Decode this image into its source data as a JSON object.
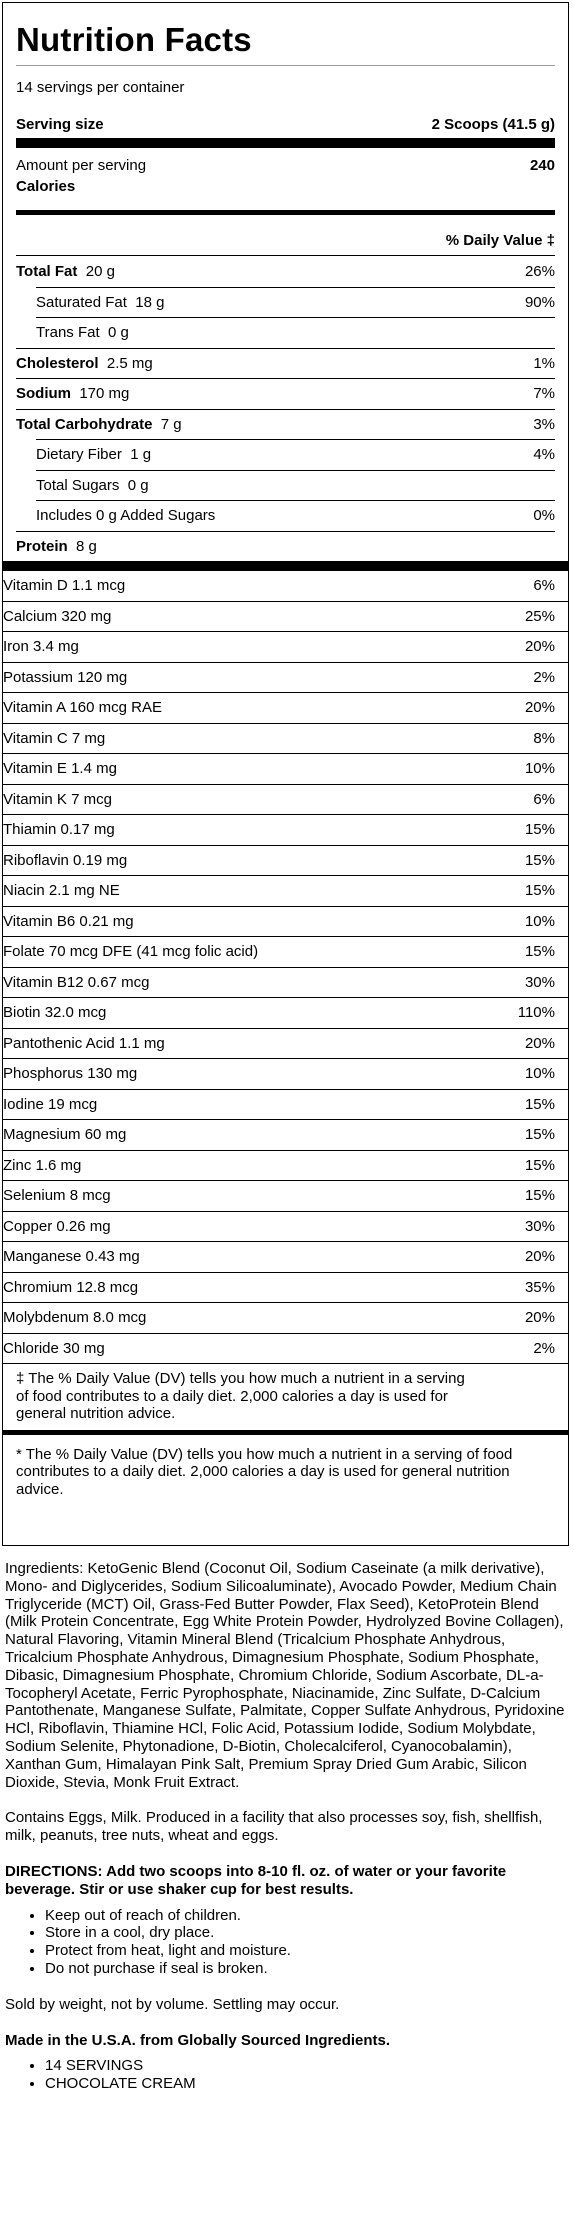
{
  "label": {
    "title": "Nutrition Facts",
    "servings": "14 servings per container",
    "serving_size_label": "Serving size",
    "serving_size_value": "2 Scoops (41.5 g)",
    "amount_per_serving": "Amount per serving",
    "calories_label": "Calories",
    "calories_value": "240",
    "dv_header": "% Daily Value ‡",
    "nutrients": [
      {
        "name": "Total Fat",
        "amount": "20 g",
        "dv": "26%",
        "bold": true,
        "indent": false
      },
      {
        "name": "Saturated Fat",
        "amount": "18 g",
        "dv": "90%",
        "bold": false,
        "indent": true
      },
      {
        "name": "Trans Fat",
        "amount": "0 g",
        "dv": "",
        "bold": false,
        "indent": true
      },
      {
        "name": "Cholesterol",
        "amount": "2.5 mg",
        "dv": "1%",
        "bold": true,
        "indent": false
      },
      {
        "name": "Sodium",
        "amount": "170 mg",
        "dv": "7%",
        "bold": true,
        "indent": false
      },
      {
        "name": "Total Carbohydrate",
        "amount": "7 g",
        "dv": "3%",
        "bold": true,
        "indent": false
      },
      {
        "name": "Dietary Fiber",
        "amount": "1 g",
        "dv": "4%",
        "bold": false,
        "indent": true
      },
      {
        "name": "Total Sugars",
        "amount": "0 g",
        "dv": "",
        "bold": false,
        "indent": true
      },
      {
        "name": "Includes 0 g Added Sugars",
        "amount": "",
        "dv": "0%",
        "bold": false,
        "indent": true
      },
      {
        "name": "Protein",
        "amount": "8 g",
        "dv": "",
        "bold": true,
        "indent": false
      }
    ],
    "vitamins": [
      {
        "name": "Vitamin D 1.1 mcg",
        "dv": "6%"
      },
      {
        "name": "Calcium 320 mg",
        "dv": "25%"
      },
      {
        "name": "Iron 3.4 mg",
        "dv": "20%"
      },
      {
        "name": "Potassium 120 mg",
        "dv": "2%"
      },
      {
        "name": "Vitamin A 160 mcg RAE",
        "dv": "20%"
      },
      {
        "name": "Vitamin C 7 mg",
        "dv": "8%"
      },
      {
        "name": "Vitamin E 1.4 mg",
        "dv": "10%"
      },
      {
        "name": "Vitamin K 7 mcg",
        "dv": "6%"
      },
      {
        "name": "Thiamin 0.17 mg",
        "dv": "15%"
      },
      {
        "name": "Riboflavin 0.19 mg",
        "dv": "15%"
      },
      {
        "name": "Niacin 2.1 mg NE",
        "dv": "15%"
      },
      {
        "name": "Vitamin B6 0.21 mg",
        "dv": "10%"
      },
      {
        "name": "Folate 70 mcg DFE (41 mcg folic acid)",
        "dv": "15%"
      },
      {
        "name": "Vitamin B12 0.67 mcg",
        "dv": "30%"
      },
      {
        "name": "Biotin 32.0 mcg",
        "dv": "110%"
      },
      {
        "name": "Pantothenic Acid 1.1 mg",
        "dv": "20%"
      },
      {
        "name": "Phosphorus 130 mg",
        "dv": "10%"
      },
      {
        "name": "Iodine 19 mcg",
        "dv": "15%"
      },
      {
        "name": "Magnesium 60 mg",
        "dv": "15%"
      },
      {
        "name": "Zinc 1.6 mg",
        "dv": "15%"
      },
      {
        "name": "Selenium 8 mcg",
        "dv": "15%"
      },
      {
        "name": "Copper 0.26 mg",
        "dv": "30%"
      },
      {
        "name": "Manganese 0.43 mg",
        "dv": "20%"
      },
      {
        "name": "Chromium 12.8 mcg",
        "dv": "35%"
      },
      {
        "name": "Molybdenum 8.0 mcg",
        "dv": "20%"
      },
      {
        "name": "Chloride 30 mg",
        "dv": "2%"
      }
    ],
    "footnote_dagger": "‡ The % Daily Value (DV) tells you how much a nutrient in a serving of food contributes to a daily diet. 2,000 calories a day is used for general nutrition advice.",
    "footnote_star": "* The % Daily Value (DV) tells you how much a nutrient in a serving of food contributes to a daily diet. 2,000 calories a day is used for general nutrition advice."
  },
  "ingredients": "Ingredients: KetoGenic Blend (Coconut Oil, Sodium Caseinate (a milk derivative), Mono- and Diglycerides, Sodium Silicoaluminate), Avocado Powder, Medium Chain Triglyceride (MCT) Oil, Grass-Fed Butter Powder, Flax Seed), KetoProtein Blend (Milk Protein Concentrate, Egg White Protein Powder, Hydrolyzed Bovine Collagen), Natural Flavoring, Vitamin Mineral Blend (Tricalcium Phosphate Anhydrous, Tricalcium Phosphate Anhydrous, Dimagnesium Phosphate, Sodium Phosphate, Dibasic, Dimagnesium Phosphate, Chromium Chloride, Sodium Ascorbate, DL-a-Tocopheryl Acetate, Ferric Pyrophosphate, Niacinamide, Zinc Sulfate, D-Calcium Pantothenate, Manganese Sulfate, Palmitate, Copper Sulfate Anhydrous, Pyridoxine HCl, Riboflavin, Thiamine HCl, Folic Acid, Potassium Iodide, Sodium Molybdate, Sodium Selenite, Phytonadione, D-Biotin, Cholecalciferol, Cyanocobalamin), Xanthan Gum, Himalayan Pink Salt, Premium Spray Dried Gum Arabic, Silicon Dioxide, Stevia, Monk Fruit Extract.",
  "allergens": "Contains Eggs, Milk. Produced in a facility that also processes soy, fish, shellfish, milk, peanuts, tree nuts, wheat and eggs.",
  "directions": "DIRECTIONS: Add two scoops into 8-10 fl. oz. of water or your favorite beverage. Stir or use shaker cup for best results.",
  "warnings": [
    "Keep out of reach of children.",
    "Store in a cool, dry place.",
    "Protect from heat, light and moisture.",
    "Do not purchase if seal is broken."
  ],
  "sold_by": "Sold by weight, not by volume. Settling may occur.",
  "made_in": "Made in the U.S.A. from Globally Sourced Ingredients.",
  "product_info": [
    "14 SERVINGS",
    "CHOCOLATE CREAM"
  ]
}
